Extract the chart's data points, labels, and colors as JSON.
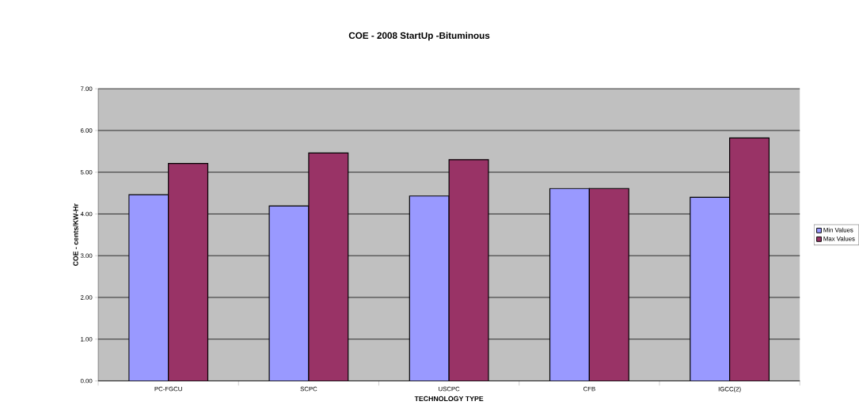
{
  "chart_data": {
    "type": "bar",
    "title": "COE - 2008 StartUp -Bituminous",
    "xlabel": "TECHNOLOGY TYPE",
    "ylabel": "COE - cents/KW-Hr",
    "categories": [
      "PC-FGCU",
      "SCPC",
      "USCPC",
      "CFB",
      "IGCC(2)"
    ],
    "series": [
      {
        "name": "Min Values",
        "color": "#9999ff",
        "values": [
          4.46,
          4.19,
          4.43,
          4.61,
          4.4
        ]
      },
      {
        "name": "Max Values",
        "color": "#993366",
        "values": [
          5.21,
          5.46,
          5.3,
          4.61,
          5.82
        ]
      }
    ],
    "ylim": [
      0,
      7
    ],
    "yticks": [
      {
        "value": 0,
        "label": "0.00"
      },
      {
        "value": 1,
        "label": "1.00"
      },
      {
        "value": 2,
        "label": "2.00"
      },
      {
        "value": 3,
        "label": "3.00"
      },
      {
        "value": 4,
        "label": "4.00"
      },
      {
        "value": 5,
        "label": "5.00"
      },
      {
        "value": 6,
        "label": "6.00"
      },
      {
        "value": 7,
        "label": "7.00"
      }
    ],
    "grid": "y",
    "legend": "right"
  }
}
